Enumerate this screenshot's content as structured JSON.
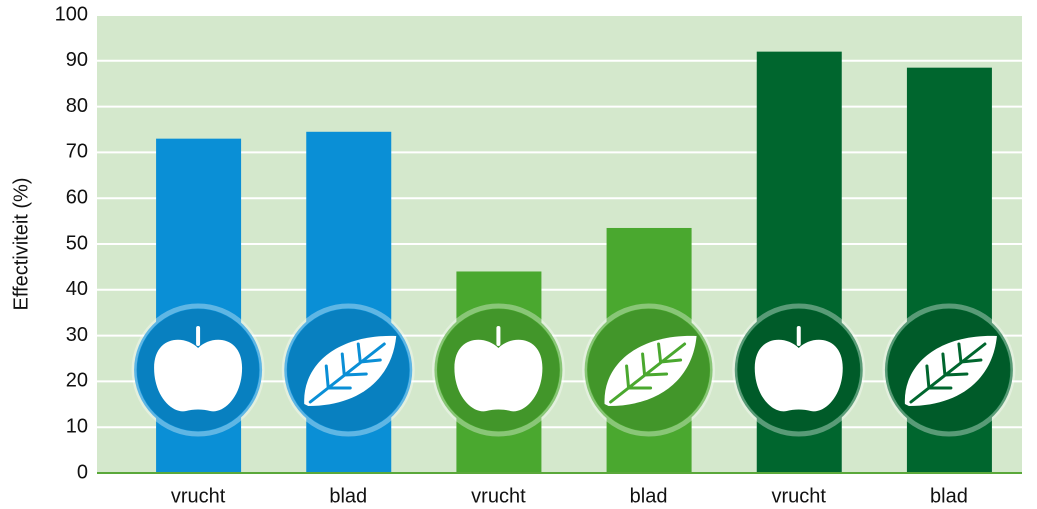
{
  "chart_data": {
    "type": "bar",
    "y_label": "Effectiviteit (%)",
    "categories": [
      "vrucht",
      "blad",
      "vrucht",
      "blad",
      "vrucht",
      "blad"
    ],
    "values": [
      73,
      74.5,
      44,
      53.5,
      92,
      88.5
    ],
    "colors": [
      "#0a8fd6",
      "#0a8fd6",
      "#4aa82f",
      "#4aa82f",
      "#00662e",
      "#00662e"
    ],
    "ylim": [
      0,
      100
    ],
    "yticks": [
      0,
      10,
      20,
      30,
      40,
      50,
      60,
      70,
      80,
      90,
      100
    ],
    "grid": true
  }
}
